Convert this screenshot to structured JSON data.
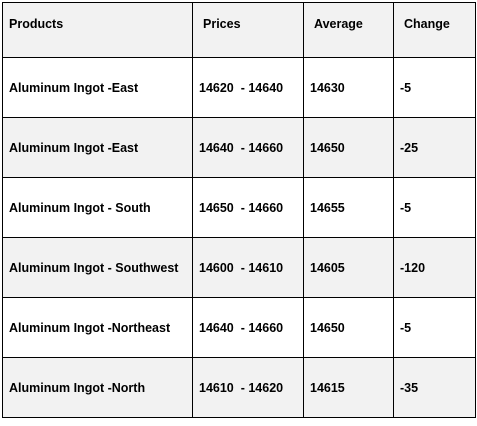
{
  "table": {
    "headers": [
      "Products",
      "Prices",
      "Average",
      "Change"
    ],
    "rows": [
      {
        "product": "Aluminum Ingot -East",
        "prices": "14620  - 14640",
        "average": "14630",
        "change": "-5"
      },
      {
        "product": "Aluminum Ingot -East",
        "prices": "14640  - 14660",
        "average": "14650",
        "change": "-25"
      },
      {
        "product": "Aluminum Ingot - South",
        "prices": "14650  - 14660",
        "average": "14655",
        "change": "-5"
      },
      {
        "product": "Aluminum Ingot - Southwest",
        "prices": "14600  - 14610",
        "average": "14605",
        "change": "-120"
      },
      {
        "product": "Aluminum Ingot -Northeast",
        "prices": "14640  - 14660",
        "average": "14650",
        "change": "-5"
      },
      {
        "product": "Aluminum Ingot -North",
        "prices": "14610  - 14620",
        "average": "14615",
        "change": "-35"
      }
    ],
    "colors": {
      "border": "#000000",
      "header_bg": "#f2f2f2",
      "row_alt_bg": "#f2f2f2",
      "row_bg": "#ffffff"
    }
  }
}
